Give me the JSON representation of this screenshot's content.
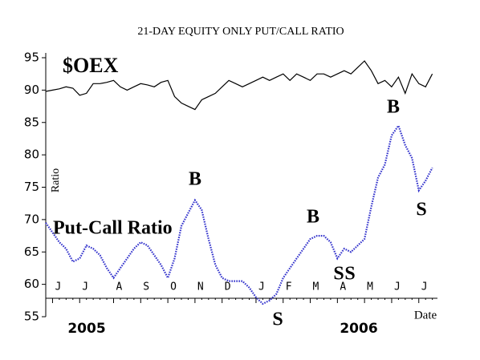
{
  "chart_data": {
    "type": "line",
    "title": "21-DAY EQUITY ONLY PUT/CALL RATIO",
    "y_label": "Ratio",
    "x_label": "Date",
    "year_labels": [
      "2005",
      "2006"
    ],
    "categories": [
      null,
      "J",
      null,
      null,
      null,
      "J",
      null,
      null,
      null,
      null,
      "A",
      null,
      null,
      null,
      "S",
      null,
      null,
      null,
      "O",
      null,
      null,
      null,
      "N",
      null,
      null,
      null,
      "D",
      null,
      null,
      null,
      null,
      "J",
      null,
      null,
      null,
      "F",
      null,
      null,
      null,
      "M",
      null,
      null,
      null,
      "A",
      null,
      null,
      null,
      "M",
      null,
      null,
      null,
      "J",
      null,
      null,
      null,
      "J",
      null,
      null
    ],
    "series": [
      {
        "name": "$OEX",
        "color": "#000000",
        "style": "solid",
        "values": [
          89.8,
          90,
          90.2,
          90.5,
          90.3,
          89.2,
          89.5,
          91,
          91,
          91.2,
          91.5,
          90.5,
          90,
          90.5,
          91,
          90.8,
          90.5,
          91.2,
          91.5,
          89,
          88,
          87.5,
          87,
          88.5,
          89,
          89.5,
          90.5,
          91.5,
          91,
          90.5,
          91,
          91.5,
          92,
          91.5,
          92,
          92.5,
          91.5,
          92.5,
          92,
          91.5,
          92.5,
          92.5,
          92,
          92.5,
          93,
          92.5,
          93.5,
          94.5,
          93,
          91,
          91.5,
          90.5,
          92,
          89.5,
          92.5,
          91,
          90.5,
          92.5
        ]
      },
      {
        "name": "Put-Call Ratio",
        "color": "#3333cc",
        "style": "dotted",
        "values": [
          69.5,
          68,
          66.5,
          65.5,
          63.5,
          64,
          66,
          65.5,
          64.5,
          62.5,
          61,
          62.5,
          64,
          65.5,
          66.5,
          66,
          64.5,
          63,
          61,
          64,
          69,
          71,
          73,
          71.5,
          67,
          63,
          61,
          60.5,
          60.5,
          60.5,
          59.5,
          58,
          57,
          57.5,
          58.5,
          61,
          62.5,
          64,
          65.5,
          67,
          67.5,
          67.5,
          66.5,
          64,
          65.5,
          65,
          66,
          67,
          72,
          76.5,
          78.5,
          83,
          84.5,
          81.5,
          79.5,
          74.5,
          76,
          78
        ]
      }
    ],
    "annotations": [
      "B",
      "B",
      "S",
      "S",
      "S",
      "B",
      "S"
    ],
    "annotation_color": "#e00000",
    "ylim": [
      55,
      95
    ],
    "yticks": [
      55,
      60,
      65,
      70,
      75,
      80,
      85,
      90,
      95
    ],
    "grid": false
  }
}
